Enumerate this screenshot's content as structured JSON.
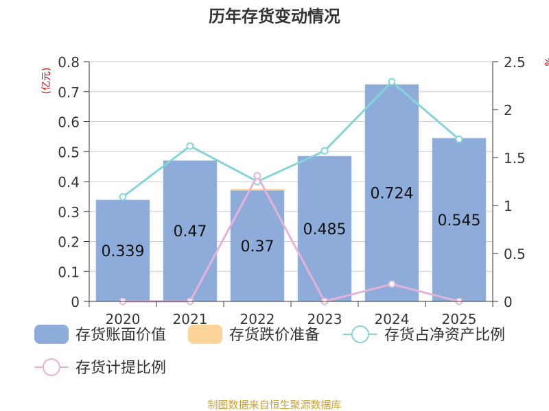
{
  "chart_data": {
    "type": "bar",
    "title": "历年存货变动情况",
    "categories": [
      "2020",
      "2021",
      "2022",
      "2023",
      "2024",
      "2025"
    ],
    "y_left": {
      "unit": "(亿元)",
      "ylim": [
        0,
        0.8
      ],
      "ticks": [
        "0",
        "0.1",
        "0.2",
        "0.3",
        "0.4",
        "0.5",
        "0.6",
        "0.7",
        "0.8"
      ]
    },
    "y_right": {
      "unit": "%",
      "ylim": [
        0,
        2.5
      ],
      "ticks": [
        "0",
        "0.5",
        "1",
        "1.5",
        "2",
        "2.5"
      ]
    },
    "series": [
      {
        "name": "存货账面价值",
        "kind": "bar",
        "axis": "left",
        "color": "#8eacd9",
        "values": [
          0.339,
          0.47,
          0.37,
          0.485,
          0.724,
          0.545
        ],
        "labels": [
          "0.339",
          "0.47",
          "0.37",
          "0.485",
          "0.724",
          "0.545"
        ]
      },
      {
        "name": "存货跌价准备",
        "kind": "bar-stacked",
        "axis": "left",
        "color": "#fcd49a",
        "values": [
          0,
          0,
          0.005,
          0,
          0,
          0
        ]
      },
      {
        "name": "存货占净资产比例",
        "kind": "line",
        "axis": "right",
        "color": "#86d5d6",
        "values": [
          1.09,
          1.62,
          1.25,
          1.57,
          2.29,
          1.69
        ]
      },
      {
        "name": "存货计提比例",
        "kind": "line",
        "axis": "right",
        "color": "#e5b3d8",
        "values": [
          0,
          0,
          1.31,
          0,
          0.18,
          0
        ]
      }
    ],
    "legend_position": "bottom",
    "grid": true
  },
  "footer": {
    "source": "制图数据来自恒生聚源数据库"
  }
}
